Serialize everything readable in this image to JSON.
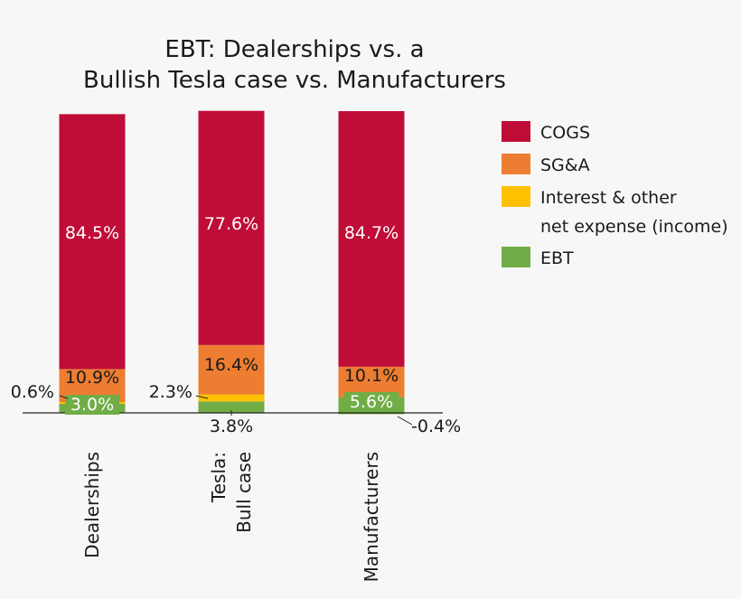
{
  "chart_data": {
    "type": "bar",
    "stacked": true,
    "title_lines": [
      "EBT: Dealerships vs. a",
      "Bullish Tesla case vs. Manufacturers"
    ],
    "categories": [
      {
        "id": "dealerships",
        "label_lines": [
          "Dealerships"
        ]
      },
      {
        "id": "tesla",
        "label_lines": [
          "Tesla:",
          "Bull case"
        ]
      },
      {
        "id": "manufacturers",
        "label_lines": [
          "Manufacturers"
        ]
      }
    ],
    "series": [
      {
        "id": "ebt",
        "name": "EBT",
        "color": "#70ad47",
        "label_color": "#ffffff",
        "values": [
          3.0,
          3.8,
          5.6
        ],
        "labels": [
          "3.0%",
          "3.8%",
          "5.6%"
        ]
      },
      {
        "id": "interest",
        "name_lines": [
          "Interest & other",
          "net expense (income)"
        ],
        "color": "#ffc000",
        "label_color": "#1a1a1a",
        "values": [
          0.6,
          2.3,
          -0.4
        ],
        "labels": [
          "0.6%",
          "2.3%",
          "-0.4%"
        ]
      },
      {
        "id": "sga",
        "name": "SG&A",
        "color": "#ed7d31",
        "label_color": "#1a1a1a",
        "values": [
          10.9,
          16.4,
          10.1
        ],
        "labels": [
          "10.9%",
          "16.4%",
          "10.1%"
        ]
      },
      {
        "id": "cogs",
        "name": "COGS",
        "color": "#c00d38",
        "label_color": "#ffffff",
        "values": [
          84.5,
          77.6,
          84.7
        ],
        "labels": [
          "84.5%",
          "77.6%",
          "84.7%"
        ]
      }
    ],
    "legend": [
      "cogs",
      "sga",
      "interest",
      "ebt"
    ],
    "ylim": [
      0,
      100
    ],
    "grid": false,
    "legend_position": "right"
  }
}
